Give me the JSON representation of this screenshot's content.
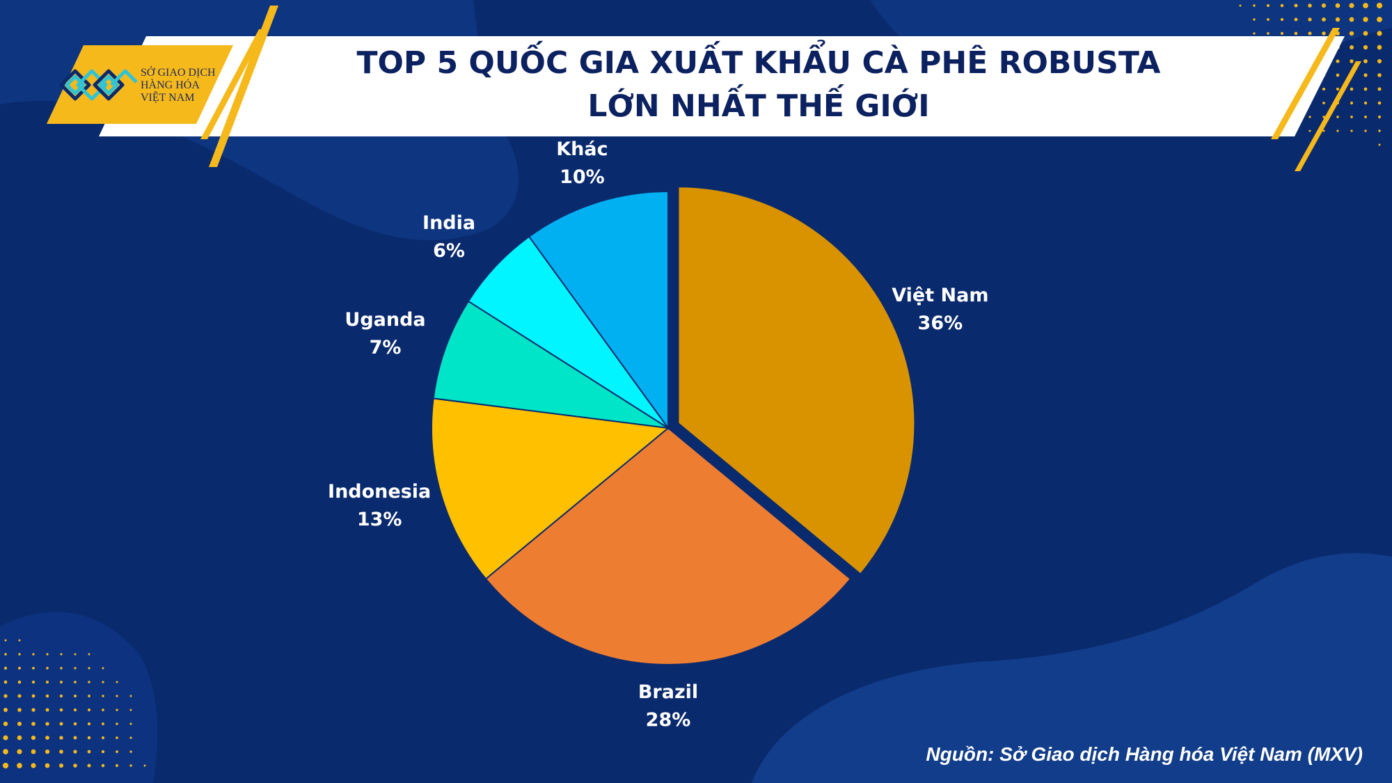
{
  "header": {
    "logo_lines": [
      "SỞ GIAO DỊCH",
      "HÀNG HÓA",
      "VIỆT NAM"
    ],
    "title_lines": [
      "TOP 5 QUỐC GIA XUẤT KHẨU CÀ PHÊ ROBUSTA",
      "LỚN NHẤT THẾ GIỚI"
    ]
  },
  "chart_data": {
    "type": "pie",
    "title": "TOP 5 QUỐC GIA XUẤT KHẨU CÀ PHÊ ROBUSTA LỚN NHẤT THẾ GIỚI",
    "categories": [
      "Việt Nam",
      "Brazil",
      "Indonesia",
      "Uganda",
      "India",
      "Khác"
    ],
    "values": [
      36,
      28,
      13,
      7,
      6,
      10
    ],
    "value_labels": [
      "36%",
      "28%",
      "13%",
      "7%",
      "6%",
      "10%"
    ],
    "colors": [
      "#d99300",
      "#ed7d31",
      "#ffc000",
      "#00e5c8",
      "#00f5ff",
      "#00b0f0"
    ],
    "exploded": [
      "Việt Nam"
    ],
    "legend": "none"
  },
  "footer": {
    "source": "Nguồn: Sở Giao dịch Hàng hóa Việt Nam (MXV)"
  }
}
